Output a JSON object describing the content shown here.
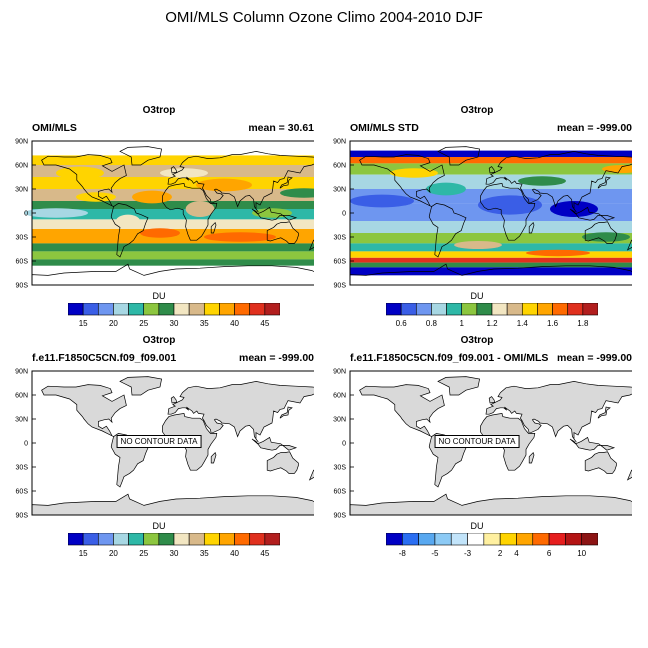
{
  "title": "OMI/MLS Column Ozone Climo 2004-2010 DJF",
  "lat_labels": [
    "90N",
    "60N",
    "30N",
    "0",
    "30S",
    "60S",
    "90S"
  ],
  "colors": {
    "land": "#d9d9d9",
    "coast": "#000000",
    "ozone_palette": [
      "#0000c4",
      "#3a5ee6",
      "#6e96f0",
      "#a7d7e3",
      "#2eb8a7",
      "#8cc63f",
      "#2f8c4a",
      "#f2e6c2",
      "#d8b98a",
      "#ffd400",
      "#ffa500",
      "#ff6a00",
      "#e0301e",
      "#b21e1e"
    ],
    "std_palette": [
      "#0000c4",
      "#3a5ee6",
      "#6e96f0",
      "#a7d7e3",
      "#2eb8a7",
      "#8cc63f",
      "#2f8c4a",
      "#f2e6c2",
      "#d8b98a",
      "#ffd400",
      "#ffa500",
      "#ff6a00",
      "#e0301e",
      "#b21e1e"
    ],
    "diff_palette": [
      "#0000c4",
      "#2a6ef2",
      "#58a8f0",
      "#8ccaf5",
      "#c2e4fa",
      "#ffffff",
      "#fff0a0",
      "#ffd400",
      "#ffa500",
      "#ff6a00",
      "#e61e1e",
      "#b41414",
      "#8c1414"
    ]
  },
  "panels": [
    {
      "title": "O3trop",
      "left_label": "OMI/MLS",
      "right_label": "mean =  30.61",
      "kind": "ozone",
      "colorbar_label": "DU",
      "colorbar_ticks": [
        "15",
        "20",
        "25",
        "30",
        "35",
        "40",
        "45"
      ],
      "no_data_text": ""
    },
    {
      "title": "O3trop",
      "left_label": "OMI/MLS STD",
      "right_label": "mean = -999.00",
      "kind": "std",
      "colorbar_label": "DU",
      "colorbar_ticks": [
        "0.6",
        "0.8",
        "1",
        "1.2",
        "1.4",
        "1.6",
        "1.8"
      ],
      "no_data_text": ""
    },
    {
      "title": "O3trop",
      "left_label": "f.e11.F1850C5CN.f09_f09.001",
      "right_label": "mean = -999.00",
      "kind": "empty",
      "colorbar_label": "DU",
      "colorbar_ticks": [
        "15",
        "20",
        "25",
        "30",
        "35",
        "40",
        "45"
      ],
      "no_data_text": "NO CONTOUR DATA"
    },
    {
      "title": "O3trop",
      "left_label": "f.e11.F1850C5CN.f09_f09.001 - OMI/MLS",
      "right_label": "mean = -999.00",
      "kind": "empty",
      "colorbar_label": "DU",
      "colorbar_ticks": [
        "-8",
        "-5",
        "-3",
        "2",
        "4",
        "6",
        "10"
      ],
      "no_data_text": "NO CONTOUR DATA"
    }
  ]
}
